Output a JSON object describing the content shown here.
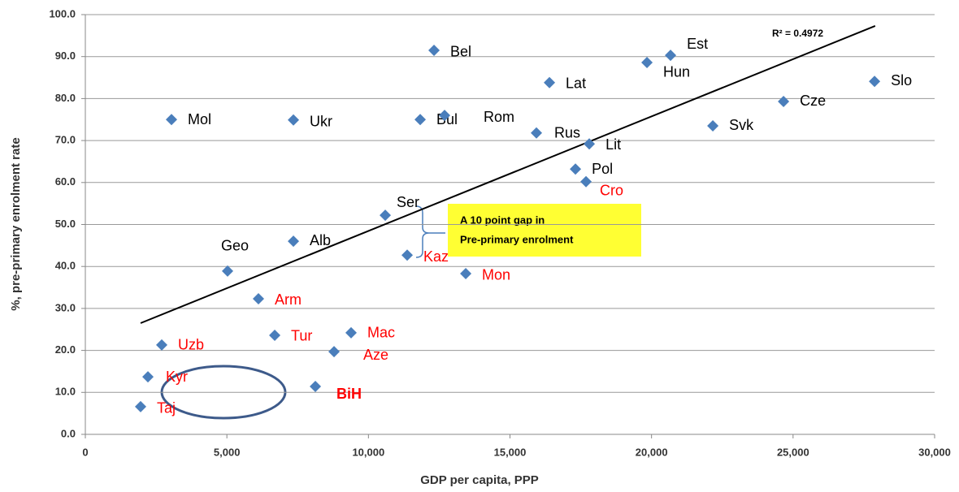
{
  "chart_data": {
    "type": "scatter",
    "x_label": "GDP per capita, PPP",
    "y_label": "%, pre-primary enrolment rate",
    "point_labels": [
      "Bel",
      "Est",
      "Hun",
      "Lat",
      "Slo",
      "Cze",
      "Svk",
      "Mol",
      "Ukr",
      "Bul",
      "Rom",
      "Rus",
      "Lit",
      "Pol",
      "Cro",
      "Ser",
      "Alb",
      "Kaz",
      "Geo",
      "Mon",
      "Arm",
      "Tur",
      "Mac",
      "Uzb",
      "Aze",
      "Kyr",
      "BiH",
      "Taj"
    ],
    "x": [
      12317,
      20672,
      19839,
      16394,
      27878,
      24663,
      22165,
      3043,
      7350,
      11829,
      12690,
      15934,
      17801,
      17313,
      17686,
      10594,
      7350,
      11369,
      5024,
      13437,
      6115,
      6690,
      9388,
      2699,
      8786,
      2211,
      8125,
      1952
    ],
    "values": [
      91.5,
      90.3,
      88.6,
      83.8,
      84.1,
      79.3,
      73.5,
      75.0,
      74.9,
      75.0,
      76.0,
      71.8,
      69.2,
      63.2,
      60.2,
      52.2,
      46.0,
      42.7,
      38.9,
      38.3,
      32.3,
      23.6,
      24.2,
      21.3,
      19.7,
      13.7,
      11.4,
      6.6
    ],
    "label_colors": [
      "#000",
      "#000",
      "#000",
      "#000",
      "#000",
      "#000",
      "#000",
      "#000",
      "#000",
      "#000",
      "#000",
      "#000",
      "#000",
      "#000",
      "#ff0000",
      "#000",
      "#000",
      "#ff0000",
      "#000",
      "#ff0000",
      "#ff0000",
      "#ff0000",
      "#ff0000",
      "#ff0000",
      "#ff0000",
      "#ff0000",
      "#ff0000",
      "#ff0000"
    ],
    "label_weights": [
      "normal",
      "normal",
      "normal",
      "normal",
      "normal",
      "normal",
      "normal",
      "normal",
      "normal",
      "normal",
      "normal",
      "normal",
      "normal",
      "normal",
      "normal",
      "normal",
      "normal",
      "normal",
      "normal",
      "normal",
      "normal",
      "normal",
      "normal",
      "normal",
      "normal",
      "normal",
      "bold",
      "normal"
    ],
    "color": "#4a7ebb",
    "trendline": {
      "x": [
        1952,
        27900
      ],
      "y": [
        26.5,
        97.3
      ],
      "color": "#000000"
    },
    "r_squared_label": "R² = 0.4972",
    "annotation": [
      "A 10 point gap in",
      "Pre-primary enrolment"
    ],
    "xlim": [
      0,
      30000
    ],
    "xticks": [
      0,
      {
        "value": 5000,
        "label": "5,000"
      },
      {
        "value": 10000,
        "label": "10,000"
      },
      {
        "value": 15000,
        "label": "15,000"
      },
      {
        "value": 20000,
        "label": "20,000"
      },
      {
        "value": 25000,
        "label": "25,000"
      },
      {
        "value": 30000,
        "label": "30,000"
      }
    ],
    "ylim": [
      0,
      100
    ],
    "yticks": [
      {
        "value": 0,
        "label": "0.0"
      },
      {
        "value": 10,
        "label": "10.0"
      },
      {
        "value": 20,
        "label": "20.0"
      },
      {
        "value": 30,
        "label": "30.0"
      },
      {
        "value": 40,
        "label": "40.0"
      },
      {
        "value": 50,
        "label": "50.0"
      },
      {
        "value": 60,
        "label": "60.0"
      },
      {
        "value": 70,
        "label": "70.0"
      },
      {
        "value": 80,
        "label": "80.0"
      },
      {
        "value": 90,
        "label": "90.0"
      },
      {
        "value": 100,
        "label": "100.0"
      }
    ],
    "grid": true
  }
}
